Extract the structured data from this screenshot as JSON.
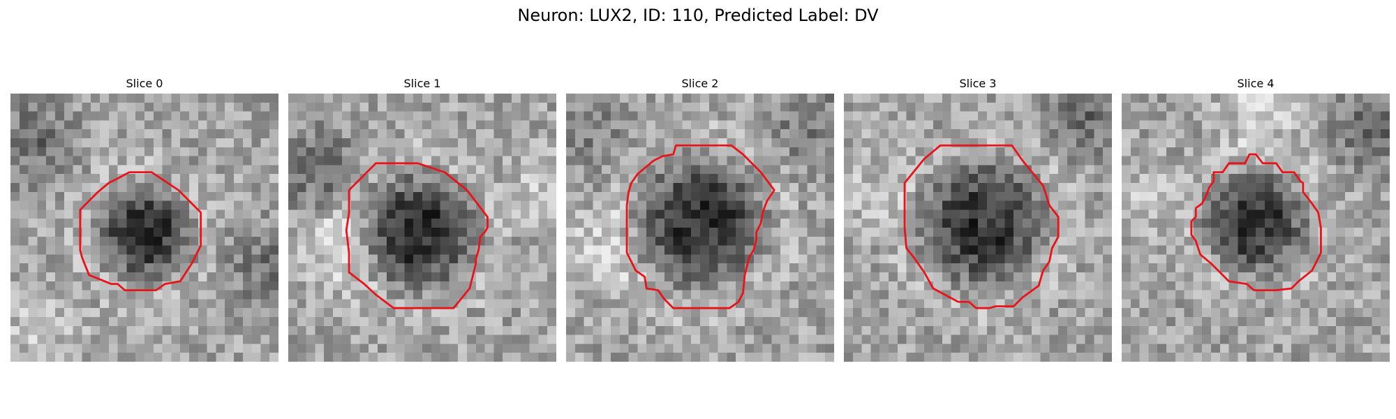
{
  "figure": {
    "title": "Neuron: LUX2, ID: 110, Predicted Label: DV"
  },
  "panels": [
    {
      "title": "Slice 0"
    },
    {
      "title": "Slice 1"
    },
    {
      "title": "Slice 2"
    },
    {
      "title": "Slice 3"
    },
    {
      "title": "Slice 4"
    }
  ],
  "colors": {
    "contour": "#e8141a",
    "background": "#ffffff"
  }
}
